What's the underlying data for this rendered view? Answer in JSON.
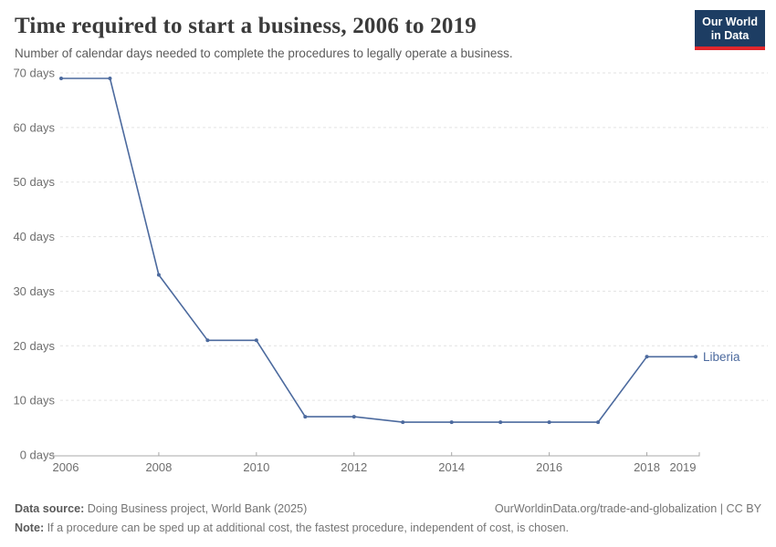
{
  "header": {
    "title": "Time required to start a business, 2006 to 2019",
    "subtitle": "Number of calendar days needed to complete the procedures to legally operate a business.",
    "logo_line1": "Our World",
    "logo_line2": "in Data",
    "logo_bg_color": "#1d3d63",
    "logo_accent_color": "#e0262c"
  },
  "chart_data": {
    "type": "line",
    "title": "Time required to start a business, 2006 to 2019",
    "xlabel": "",
    "ylabel": "days",
    "x": [
      2006,
      2007,
      2008,
      2009,
      2010,
      2011,
      2012,
      2013,
      2014,
      2015,
      2016,
      2017,
      2018,
      2019
    ],
    "series": [
      {
        "name": "Liberia",
        "color": "#4c6a9e",
        "values": [
          69,
          69,
          33,
          21,
          21,
          7,
          7,
          6,
          6,
          6,
          6,
          6,
          18,
          18
        ]
      }
    ],
    "x_ticks": [
      2006,
      2008,
      2010,
      2012,
      2014,
      2016,
      2018,
      2019
    ],
    "y_ticks": [
      0,
      10,
      20,
      30,
      40,
      50,
      60,
      70
    ],
    "y_tick_suffix": " days",
    "xlim": [
      2006,
      2019
    ],
    "ylim": [
      0,
      70
    ],
    "grid": "horizontal-dashed",
    "legend": "end-of-line-label"
  },
  "footer": {
    "datasource_label": "Data source:",
    "datasource_value": " Doing Business project, World Bank (2025)",
    "attribution": "OurWorldinData.org/trade-and-globalization | CC BY",
    "note_label": "Note:",
    "note_value": " If a procedure can be sped up at additional cost, the fastest procedure, independent of cost, is chosen."
  }
}
